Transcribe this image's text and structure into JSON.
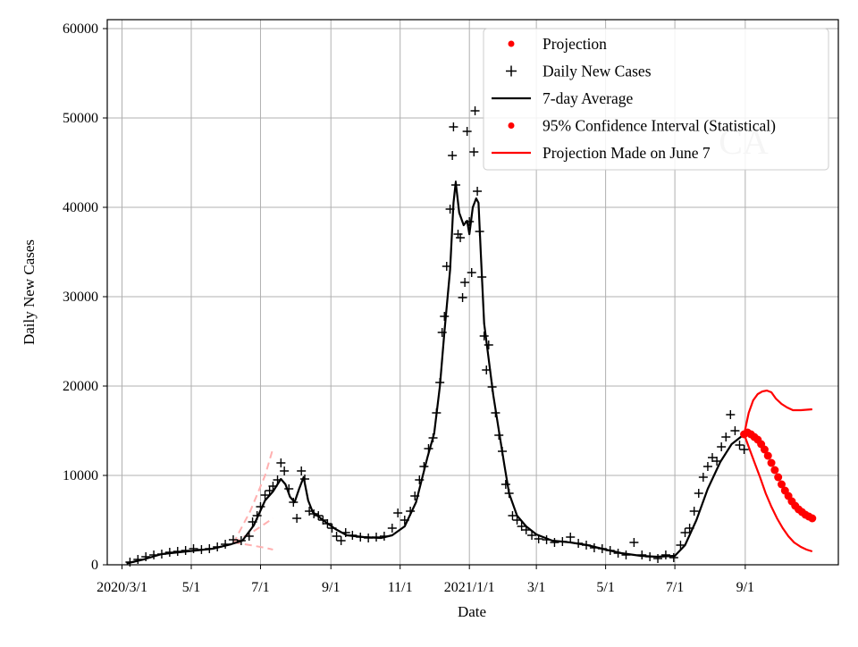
{
  "chart_data": {
    "type": "line",
    "title": "",
    "xlabel": "Date",
    "ylabel": "Daily New Cases",
    "watermark": "CA",
    "xlim": [
      "2020-02-17",
      "2021-11-22"
    ],
    "ylim": [
      0,
      61000
    ],
    "x_ticks": [
      {
        "date": "2020-03-01",
        "label": "2020/3/1"
      },
      {
        "date": "2020-05-01",
        "label": "5/1"
      },
      {
        "date": "2020-07-01",
        "label": "7/1"
      },
      {
        "date": "2020-09-01",
        "label": "9/1"
      },
      {
        "date": "2020-11-01",
        "label": "11/1"
      },
      {
        "date": "2021-01-01",
        "label": "2021/1/1"
      },
      {
        "date": "2021-03-01",
        "label": "3/1"
      },
      {
        "date": "2021-05-01",
        "label": "5/1"
      },
      {
        "date": "2021-07-01",
        "label": "7/1"
      },
      {
        "date": "2021-09-01",
        "label": "9/1"
      }
    ],
    "y_ticks": [
      {
        "value": 0,
        "label": "0"
      },
      {
        "value": 10000,
        "label": "10000"
      },
      {
        "value": 20000,
        "label": "20000"
      },
      {
        "value": 30000,
        "label": "30000"
      },
      {
        "value": 40000,
        "label": "40000"
      },
      {
        "value": 50000,
        "label": "50000"
      },
      {
        "value": 60000,
        "label": "60000"
      }
    ],
    "grid": true,
    "legend_position": "top-right",
    "legend": [
      {
        "label": "Projection",
        "marker": "dot",
        "color": "#ff0000"
      },
      {
        "label": "Daily New Cases",
        "marker": "plus",
        "color": "#000000"
      },
      {
        "label": "7-day Average",
        "marker": "line",
        "color": "#000000"
      },
      {
        "label": "95% Confidence Interval (Statistical)",
        "marker": "dot",
        "color": "#ff0000"
      },
      {
        "label": "Projection Made on June 7",
        "marker": "line",
        "color": "#ff0000"
      }
    ],
    "series": [
      {
        "name": "Daily New Cases",
        "style": "plus",
        "color": "#000000",
        "points": [
          [
            "2020-03-08",
            300
          ],
          [
            "2020-03-15",
            600
          ],
          [
            "2020-03-22",
            900
          ],
          [
            "2020-03-29",
            1100
          ],
          [
            "2020-04-05",
            1200
          ],
          [
            "2020-04-12",
            1400
          ],
          [
            "2020-04-19",
            1500
          ],
          [
            "2020-04-26",
            1600
          ],
          [
            "2020-05-03",
            1800
          ],
          [
            "2020-05-10",
            1700
          ],
          [
            "2020-05-17",
            1800
          ],
          [
            "2020-05-24",
            2000
          ],
          [
            "2020-05-31",
            2300
          ],
          [
            "2020-06-07",
            2800
          ],
          [
            "2020-06-14",
            2700
          ],
          [
            "2020-06-21",
            3200
          ],
          [
            "2020-06-24",
            4800
          ],
          [
            "2020-06-28",
            5500
          ],
          [
            "2020-07-01",
            6500
          ],
          [
            "2020-07-05",
            7800
          ],
          [
            "2020-07-09",
            8300
          ],
          [
            "2020-07-12",
            8800
          ],
          [
            "2020-07-16",
            9500
          ],
          [
            "2020-07-19",
            11400
          ],
          [
            "2020-07-22",
            10500
          ],
          [
            "2020-07-26",
            8500
          ],
          [
            "2020-07-30",
            7000
          ],
          [
            "2020-08-02",
            5200
          ],
          [
            "2020-08-06",
            10500
          ],
          [
            "2020-08-09",
            9600
          ],
          [
            "2020-08-13",
            6000
          ],
          [
            "2020-08-17",
            5700
          ],
          [
            "2020-08-21",
            5500
          ],
          [
            "2020-08-25",
            5000
          ],
          [
            "2020-08-29",
            4600
          ],
          [
            "2020-09-02",
            4100
          ],
          [
            "2020-09-06",
            3200
          ],
          [
            "2020-09-10",
            2700
          ],
          [
            "2020-09-14",
            3600
          ],
          [
            "2020-09-20",
            3300
          ],
          [
            "2020-09-27",
            3100
          ],
          [
            "2020-10-04",
            3000
          ],
          [
            "2020-10-11",
            3100
          ],
          [
            "2020-10-18",
            3200
          ],
          [
            "2020-10-25",
            4100
          ],
          [
            "2020-10-30",
            5800
          ],
          [
            "2020-11-05",
            5000
          ],
          [
            "2020-11-10",
            6000
          ],
          [
            "2020-11-14",
            7700
          ],
          [
            "2020-11-18",
            9500
          ],
          [
            "2020-11-22",
            11000
          ],
          [
            "2020-11-26",
            13000
          ],
          [
            "2020-11-30",
            14200
          ],
          [
            "2020-12-03",
            17000
          ],
          [
            "2020-12-06",
            20400
          ],
          [
            "2020-12-08",
            26000
          ],
          [
            "2020-12-10",
            27800
          ],
          [
            "2020-12-12",
            33400
          ],
          [
            "2020-12-15",
            39800
          ],
          [
            "2020-12-17",
            45800
          ],
          [
            "2020-12-18",
            49000
          ],
          [
            "2020-12-20",
            42500
          ],
          [
            "2020-12-22",
            37000
          ],
          [
            "2020-12-24",
            36600
          ],
          [
            "2020-12-26",
            29900
          ],
          [
            "2020-12-28",
            31600
          ],
          [
            "2020-12-30",
            48500
          ],
          [
            "2021-01-01",
            38400
          ],
          [
            "2021-01-03",
            32700
          ],
          [
            "2021-01-05",
            46200
          ],
          [
            "2021-01-06",
            50800
          ],
          [
            "2021-01-08",
            41800
          ],
          [
            "2021-01-10",
            37300
          ],
          [
            "2021-01-12",
            32200
          ],
          [
            "2021-01-14",
            25600
          ],
          [
            "2021-01-16",
            21800
          ],
          [
            "2021-01-18",
            24600
          ],
          [
            "2021-01-21",
            19900
          ],
          [
            "2021-01-24",
            17000
          ],
          [
            "2021-01-27",
            14500
          ],
          [
            "2021-01-30",
            12700
          ],
          [
            "2021-02-02",
            9000
          ],
          [
            "2021-02-05",
            8000
          ],
          [
            "2021-02-08",
            5500
          ],
          [
            "2021-02-12",
            5000
          ],
          [
            "2021-02-16",
            4300
          ],
          [
            "2021-02-20",
            3900
          ],
          [
            "2021-02-25",
            3300
          ],
          [
            "2021-03-03",
            2900
          ],
          [
            "2021-03-10",
            2800
          ],
          [
            "2021-03-17",
            2500
          ],
          [
            "2021-03-24",
            2600
          ],
          [
            "2021-03-31",
            3100
          ],
          [
            "2021-04-07",
            2400
          ],
          [
            "2021-04-14",
            2200
          ],
          [
            "2021-04-21",
            1900
          ],
          [
            "2021-04-28",
            1800
          ],
          [
            "2021-05-05",
            1600
          ],
          [
            "2021-05-12",
            1300
          ],
          [
            "2021-05-19",
            1100
          ],
          [
            "2021-05-26",
            2500
          ],
          [
            "2021-06-02",
            1100
          ],
          [
            "2021-06-09",
            900
          ],
          [
            "2021-06-16",
            700
          ],
          [
            "2021-06-23",
            1100
          ],
          [
            "2021-06-30",
            800
          ],
          [
            "2021-07-06",
            2200
          ],
          [
            "2021-07-10",
            3600
          ],
          [
            "2021-07-14",
            4100
          ],
          [
            "2021-07-18",
            6000
          ],
          [
            "2021-07-22",
            8000
          ],
          [
            "2021-07-26",
            9800
          ],
          [
            "2021-07-30",
            11000
          ],
          [
            "2021-08-03",
            12000
          ],
          [
            "2021-08-07",
            11600
          ],
          [
            "2021-08-11",
            13200
          ],
          [
            "2021-08-15",
            14300
          ],
          [
            "2021-08-19",
            16800
          ],
          [
            "2021-08-23",
            15000
          ],
          [
            "2021-08-27",
            13400
          ],
          [
            "2021-08-31",
            12900
          ]
        ]
      },
      {
        "name": "7-day Average",
        "style": "line",
        "color": "#000000",
        "points": [
          [
            "2020-03-05",
            150
          ],
          [
            "2020-03-20",
            600
          ],
          [
            "2020-04-05",
            1200
          ],
          [
            "2020-04-20",
            1400
          ],
          [
            "2020-05-05",
            1600
          ],
          [
            "2020-05-20",
            1800
          ],
          [
            "2020-06-05",
            2300
          ],
          [
            "2020-06-15",
            2700
          ],
          [
            "2020-06-25",
            4400
          ],
          [
            "2020-07-05",
            7200
          ],
          [
            "2020-07-12",
            8200
          ],
          [
            "2020-07-19",
            9600
          ],
          [
            "2020-07-23",
            9000
          ],
          [
            "2020-07-27",
            7600
          ],
          [
            "2020-07-31",
            7000
          ],
          [
            "2020-08-04",
            8500
          ],
          [
            "2020-08-08",
            9800
          ],
          [
            "2020-08-12",
            7200
          ],
          [
            "2020-08-16",
            5900
          ],
          [
            "2020-08-25",
            5000
          ],
          [
            "2020-09-05",
            4000
          ],
          [
            "2020-09-15",
            3300
          ],
          [
            "2020-09-30",
            3100
          ],
          [
            "2020-10-15",
            3000
          ],
          [
            "2020-10-25",
            3300
          ],
          [
            "2020-11-05",
            4300
          ],
          [
            "2020-11-15",
            7000
          ],
          [
            "2020-11-25",
            12000
          ],
          [
            "2020-12-01",
            14700
          ],
          [
            "2020-12-06",
            20000
          ],
          [
            "2020-12-10",
            26000
          ],
          [
            "2020-12-15",
            33000
          ],
          [
            "2020-12-18",
            40500
          ],
          [
            "2020-12-20",
            42800
          ],
          [
            "2020-12-23",
            39400
          ],
          [
            "2020-12-27",
            38000
          ],
          [
            "2020-12-30",
            38500
          ],
          [
            "2021-01-01",
            37000
          ],
          [
            "2021-01-04",
            40000
          ],
          [
            "2021-01-07",
            41000
          ],
          [
            "2021-01-09",
            40500
          ],
          [
            "2021-01-11",
            35000
          ],
          [
            "2021-01-14",
            27000
          ],
          [
            "2021-01-18",
            23000
          ],
          [
            "2021-01-22",
            19000
          ],
          [
            "2021-01-27",
            15000
          ],
          [
            "2021-02-01",
            11000
          ],
          [
            "2021-02-05",
            8000
          ],
          [
            "2021-02-12",
            5500
          ],
          [
            "2021-02-20",
            4300
          ],
          [
            "2021-03-01",
            3400
          ],
          [
            "2021-03-15",
            2700
          ],
          [
            "2021-03-31",
            2500
          ],
          [
            "2021-04-15",
            2200
          ],
          [
            "2021-05-01",
            1700
          ],
          [
            "2021-05-15",
            1300
          ],
          [
            "2021-06-01",
            1000
          ],
          [
            "2021-06-15",
            900
          ],
          [
            "2021-07-01",
            1000
          ],
          [
            "2021-07-10",
            2200
          ],
          [
            "2021-07-20",
            5000
          ],
          [
            "2021-07-30",
            8500
          ],
          [
            "2021-08-10",
            11500
          ],
          [
            "2021-08-20",
            13500
          ],
          [
            "2021-08-31",
            14600
          ]
        ]
      },
      {
        "name": "Projection",
        "style": "dot",
        "color": "#ff0000",
        "points": [
          [
            "2021-08-31",
            14600
          ],
          [
            "2021-09-03",
            14800
          ],
          [
            "2021-09-06",
            14600
          ],
          [
            "2021-09-09",
            14300
          ],
          [
            "2021-09-12",
            14000
          ],
          [
            "2021-09-15",
            13500
          ],
          [
            "2021-09-18",
            12900
          ],
          [
            "2021-09-21",
            12200
          ],
          [
            "2021-09-24",
            11400
          ],
          [
            "2021-09-27",
            10600
          ],
          [
            "2021-09-30",
            9800
          ],
          [
            "2021-10-03",
            9000
          ],
          [
            "2021-10-06",
            8300
          ],
          [
            "2021-10-09",
            7700
          ],
          [
            "2021-10-12",
            7100
          ],
          [
            "2021-10-15",
            6600
          ],
          [
            "2021-10-18",
            6200
          ],
          [
            "2021-10-21",
            5900
          ],
          [
            "2021-10-24",
            5600
          ],
          [
            "2021-10-27",
            5400
          ],
          [
            "2021-10-30",
            5200
          ]
        ]
      },
      {
        "name": "95% Confidence Interval (Statistical)",
        "style": "line",
        "color": "#ff0000",
        "upper": [
          [
            "2021-08-31",
            14600
          ],
          [
            "2021-09-04",
            17000
          ],
          [
            "2021-09-08",
            18400
          ],
          [
            "2021-09-12",
            19100
          ],
          [
            "2021-09-16",
            19400
          ],
          [
            "2021-09-20",
            19500
          ],
          [
            "2021-09-24",
            19300
          ],
          [
            "2021-09-28",
            18600
          ],
          [
            "2021-10-03",
            18000
          ],
          [
            "2021-10-08",
            17600
          ],
          [
            "2021-10-13",
            17300
          ],
          [
            "2021-10-20",
            17300
          ],
          [
            "2021-10-30",
            17400
          ]
        ],
        "lower": [
          [
            "2021-08-31",
            14600
          ],
          [
            "2021-09-04",
            13200
          ],
          [
            "2021-09-09",
            11500
          ],
          [
            "2021-09-14",
            9800
          ],
          [
            "2021-09-19",
            8000
          ],
          [
            "2021-09-24",
            6500
          ],
          [
            "2021-09-29",
            5200
          ],
          [
            "2021-10-04",
            4100
          ],
          [
            "2021-10-09",
            3200
          ],
          [
            "2021-10-14",
            2500
          ],
          [
            "2021-10-20",
            2000
          ],
          [
            "2021-10-25",
            1700
          ],
          [
            "2021-10-30",
            1500
          ]
        ]
      },
      {
        "name": "Projection Made on June 7",
        "style": "dashed",
        "color": "#ffb0b0",
        "lines": [
          [
            [
              "2020-06-07",
              2400
            ],
            [
              "2020-06-22",
              6000
            ],
            [
              "2020-07-05",
              10000
            ],
            [
              "2020-07-12",
              13000
            ]
          ],
          [
            [
              "2020-06-07",
              2500
            ],
            [
              "2020-06-22",
              3500
            ],
            [
              "2020-07-05",
              4600
            ],
            [
              "2020-07-12",
              5200
            ]
          ],
          [
            [
              "2020-06-07",
              2500
            ],
            [
              "2020-06-22",
              2200
            ],
            [
              "2020-07-05",
              1900
            ],
            [
              "2020-07-12",
              1700
            ]
          ]
        ]
      }
    ]
  }
}
